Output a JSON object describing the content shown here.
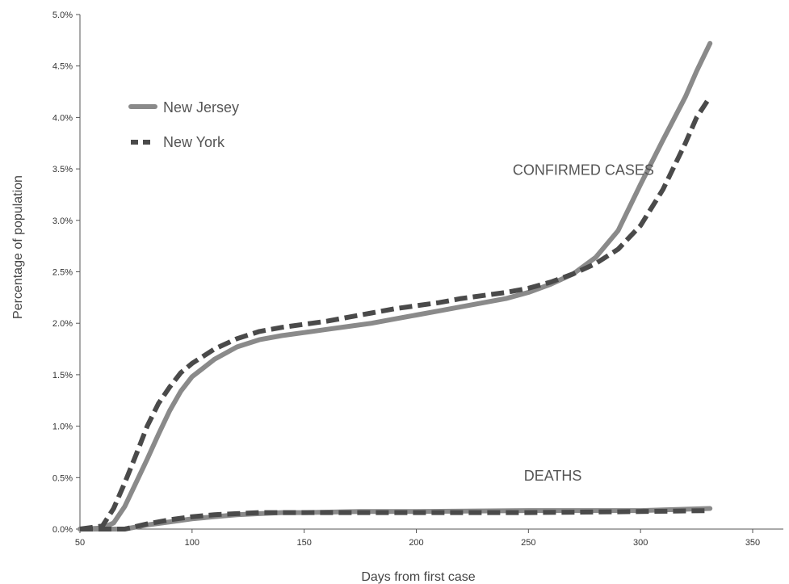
{
  "chart_data": {
    "type": "line",
    "title": "",
    "xlabel": "Days from first case",
    "ylabel": "Percentage of population",
    "xlim": [
      50,
      350
    ],
    "ylim": [
      0,
      5.0
    ],
    "x_ticks": [
      "50",
      "100",
      "150",
      "200",
      "250",
      "300",
      "350"
    ],
    "y_ticks": [
      "0.0%",
      "0.5%",
      "1.0%",
      "1.5%",
      "2.0%",
      "2.5%",
      "3.0%",
      "3.5%",
      "4.0%",
      "4.5%",
      "5.0%"
    ],
    "grid": false,
    "legend_position": "top-left",
    "annotations": [
      {
        "text": "CONFIRMED CASES",
        "x": 243,
        "y": 3.44
      },
      {
        "text": "DEATHS",
        "x": 248,
        "y": 0.47
      }
    ],
    "series": [
      {
        "name": "New Jersey",
        "metric": "confirmed",
        "style": "solid",
        "color": "#8a8a8a",
        "points": [
          [
            50,
            0
          ],
          [
            60,
            0.01
          ],
          [
            65,
            0.06
          ],
          [
            70,
            0.22
          ],
          [
            75,
            0.45
          ],
          [
            80,
            0.68
          ],
          [
            85,
            0.92
          ],
          [
            90,
            1.15
          ],
          [
            95,
            1.34
          ],
          [
            100,
            1.48
          ],
          [
            110,
            1.65
          ],
          [
            120,
            1.77
          ],
          [
            130,
            1.84
          ],
          [
            140,
            1.88
          ],
          [
            150,
            1.91
          ],
          [
            160,
            1.94
          ],
          [
            170,
            1.97
          ],
          [
            180,
            2.0
          ],
          [
            190,
            2.04
          ],
          [
            200,
            2.08
          ],
          [
            210,
            2.12
          ],
          [
            220,
            2.16
          ],
          [
            230,
            2.2
          ],
          [
            240,
            2.24
          ],
          [
            250,
            2.3
          ],
          [
            260,
            2.38
          ],
          [
            270,
            2.48
          ],
          [
            280,
            2.64
          ],
          [
            290,
            2.9
          ],
          [
            300,
            3.35
          ],
          [
            310,
            3.78
          ],
          [
            320,
            4.2
          ],
          [
            325,
            4.45
          ],
          [
            331,
            4.72
          ]
        ]
      },
      {
        "name": "New York",
        "metric": "confirmed",
        "style": "dashed",
        "color": "#4a4a4a",
        "points": [
          [
            50,
            0
          ],
          [
            60,
            0.03
          ],
          [
            65,
            0.2
          ],
          [
            70,
            0.45
          ],
          [
            75,
            0.72
          ],
          [
            80,
            1.0
          ],
          [
            85,
            1.22
          ],
          [
            90,
            1.38
          ],
          [
            95,
            1.52
          ],
          [
            100,
            1.61
          ],
          [
            110,
            1.75
          ],
          [
            120,
            1.85
          ],
          [
            130,
            1.92
          ],
          [
            140,
            1.96
          ],
          [
            150,
            1.99
          ],
          [
            160,
            2.02
          ],
          [
            170,
            2.06
          ],
          [
            180,
            2.1
          ],
          [
            190,
            2.14
          ],
          [
            200,
            2.17
          ],
          [
            210,
            2.2
          ],
          [
            220,
            2.24
          ],
          [
            230,
            2.27
          ],
          [
            240,
            2.3
          ],
          [
            250,
            2.34
          ],
          [
            260,
            2.4
          ],
          [
            270,
            2.48
          ],
          [
            280,
            2.58
          ],
          [
            290,
            2.72
          ],
          [
            300,
            2.95
          ],
          [
            310,
            3.3
          ],
          [
            320,
            3.75
          ],
          [
            325,
            4.0
          ],
          [
            331,
            4.2
          ]
        ]
      },
      {
        "name": "New Jersey",
        "metric": "deaths",
        "style": "solid",
        "color": "#8a8a8a",
        "points": [
          [
            50,
            0
          ],
          [
            70,
            0.0
          ],
          [
            80,
            0.04
          ],
          [
            90,
            0.07
          ],
          [
            100,
            0.1
          ],
          [
            110,
            0.12
          ],
          [
            120,
            0.14
          ],
          [
            130,
            0.15
          ],
          [
            140,
            0.16
          ],
          [
            150,
            0.16
          ],
          [
            175,
            0.17
          ],
          [
            200,
            0.17
          ],
          [
            250,
            0.18
          ],
          [
            300,
            0.18
          ],
          [
            331,
            0.2
          ]
        ]
      },
      {
        "name": "New York",
        "metric": "deaths",
        "style": "dashed",
        "color": "#4a4a4a",
        "points": [
          [
            50,
            0
          ],
          [
            70,
            0.0
          ],
          [
            80,
            0.05
          ],
          [
            90,
            0.09
          ],
          [
            100,
            0.12
          ],
          [
            110,
            0.14
          ],
          [
            120,
            0.15
          ],
          [
            130,
            0.16
          ],
          [
            140,
            0.16
          ],
          [
            150,
            0.16
          ],
          [
            175,
            0.16
          ],
          [
            200,
            0.16
          ],
          [
            250,
            0.16
          ],
          [
            300,
            0.17
          ],
          [
            331,
            0.18
          ]
        ]
      }
    ],
    "legend": [
      {
        "label": "New Jersey",
        "style": "solid",
        "color": "#8a8a8a"
      },
      {
        "label": "New York",
        "style": "dashed",
        "color": "#4a4a4a"
      }
    ]
  }
}
